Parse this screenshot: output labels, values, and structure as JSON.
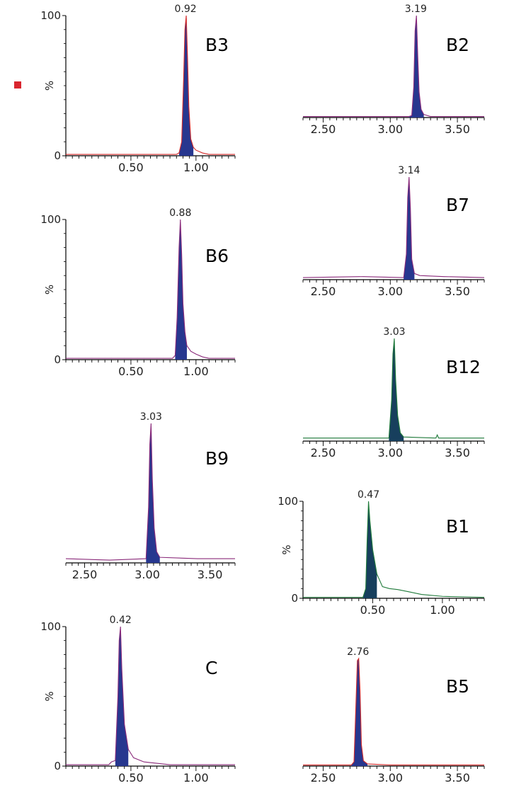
{
  "colors": {
    "peak_fill": "#27378f",
    "peak_fill_green": "#173f5d",
    "trace_red": "#d42a2a",
    "trace_purple": "#8a2a7a",
    "trace_green": "#1f7a3a",
    "axis": "#000000",
    "marker": "#d9262f"
  },
  "chart_data": [
    {
      "type": "line",
      "label": "B3",
      "peak_rt": 0.92,
      "peak_label": "0.92",
      "trace": "red",
      "xlim": [
        0.0,
        1.3
      ],
      "x_ticks": [
        "0.50",
        "1.00"
      ],
      "ylim": [
        0,
        100
      ],
      "y_ticks": [
        "0",
        "100"
      ],
      "ylabel": "%",
      "x": [
        0.0,
        0.85,
        0.87,
        0.89,
        0.905,
        0.915,
        0.925,
        0.935,
        0.945,
        0.96,
        0.98,
        1.0,
        1.05,
        1.1,
        1.3
      ],
      "y": [
        1,
        1,
        2,
        10,
        55,
        90,
        100,
        70,
        35,
        12,
        6,
        4,
        2,
        1,
        1
      ]
    },
    {
      "type": "line",
      "label": "B2",
      "peak_rt": 3.19,
      "peak_label": "3.19",
      "trace": "purple",
      "xlim": [
        2.35,
        3.7
      ],
      "x_ticks": [
        "2.50",
        "3.00",
        "3.50"
      ],
      "ylim": [
        0,
        100
      ],
      "x": [
        2.35,
        3.14,
        3.16,
        3.175,
        3.185,
        3.195,
        3.205,
        3.215,
        3.23,
        3.25,
        3.3,
        3.7
      ],
      "y": [
        1,
        1,
        2,
        30,
        85,
        100,
        60,
        25,
        8,
        3,
        1,
        1
      ]
    },
    {
      "type": "line",
      "label": "B6",
      "peak_rt": 0.88,
      "peak_label": "0.88",
      "trace": "purple",
      "xlim": [
        0.0,
        1.3
      ],
      "x_ticks": [
        "0.50",
        "1.00"
      ],
      "ylim": [
        0,
        100
      ],
      "y_ticks": [
        "0",
        "100"
      ],
      "ylabel": "%",
      "x": [
        0.0,
        0.82,
        0.84,
        0.855,
        0.87,
        0.88,
        0.89,
        0.9,
        0.915,
        0.93,
        0.96,
        1.0,
        1.05,
        1.1,
        1.3
      ],
      "y": [
        1,
        1,
        3,
        30,
        80,
        100,
        75,
        40,
        20,
        10,
        6,
        4,
        2,
        1,
        1
      ]
    },
    {
      "type": "line",
      "label": "B7",
      "peak_rt": 3.14,
      "peak_label": "3.14",
      "trace": "purple",
      "xlim": [
        2.35,
        3.7
      ],
      "x_ticks": [
        "2.50",
        "3.00",
        "3.50"
      ],
      "ylim": [
        0,
        100
      ],
      "x": [
        2.35,
        2.8,
        3.1,
        3.12,
        3.13,
        3.14,
        3.15,
        3.16,
        3.18,
        3.22,
        3.4,
        3.7
      ],
      "y": [
        2,
        3,
        2,
        25,
        80,
        100,
        70,
        20,
        6,
        4,
        3,
        2
      ]
    },
    {
      "type": "line",
      "label": "B9",
      "peak_rt": 3.03,
      "peak_label": "3.03",
      "trace": "purple",
      "xlim": [
        2.35,
        3.7
      ],
      "x_ticks": [
        "2.50",
        "3.00",
        "3.50"
      ],
      "ylim": [
        0,
        100
      ],
      "x": [
        2.35,
        2.7,
        2.99,
        3.01,
        3.02,
        3.03,
        3.04,
        3.055,
        3.075,
        3.1,
        3.4,
        3.7
      ],
      "y": [
        3,
        2,
        3,
        40,
        85,
        100,
        60,
        25,
        8,
        4,
        3,
        3
      ]
    },
    {
      "type": "line",
      "label": "B12",
      "peak_rt": 3.03,
      "peak_label": "3.03",
      "trace": "green",
      "xlim": [
        2.35,
        3.7
      ],
      "x_ticks": [
        "2.50",
        "3.00",
        "3.50"
      ],
      "ylim": [
        0,
        100
      ],
      "x": [
        2.35,
        2.7,
        2.99,
        3.01,
        3.02,
        3.03,
        3.04,
        3.055,
        3.075,
        3.1,
        3.34,
        3.35,
        3.36,
        3.7
      ],
      "y": [
        3,
        3,
        3,
        40,
        85,
        100,
        60,
        25,
        8,
        4,
        3,
        6,
        3,
        3
      ]
    },
    {
      "type": "line",
      "label": "B1",
      "peak_rt": 0.47,
      "peak_label": "0.47",
      "trace": "green",
      "xlim": [
        0.0,
        1.3
      ],
      "x_ticks": [
        "0.50",
        "1.00"
      ],
      "ylim": [
        0,
        100
      ],
      "y_ticks": [
        "0",
        "100"
      ],
      "ylabel": "%",
      "x": [
        0.0,
        0.43,
        0.45,
        0.46,
        0.47,
        0.48,
        0.5,
        0.53,
        0.57,
        0.62,
        0.68,
        0.75,
        0.85,
        1.0,
        1.3
      ],
      "y": [
        1,
        1,
        10,
        60,
        100,
        80,
        50,
        25,
        12,
        10,
        9,
        7,
        4,
        2,
        1
      ]
    },
    {
      "type": "line",
      "label": "C",
      "peak_rt": 0.42,
      "peak_label": "0.42",
      "trace": "purple",
      "xlim": [
        0.0,
        1.3
      ],
      "x_ticks": [
        "0.50",
        "1.00"
      ],
      "ylim": [
        0,
        100
      ],
      "y_ticks": [
        "0",
        "100"
      ],
      "ylabel": "%",
      "x": [
        0.0,
        0.33,
        0.35,
        0.38,
        0.4,
        0.41,
        0.42,
        0.43,
        0.45,
        0.48,
        0.52,
        0.6,
        0.7,
        0.8,
        1.3
      ],
      "y": [
        1,
        1,
        3,
        4,
        50,
        90,
        100,
        70,
        30,
        12,
        6,
        3,
        2,
        1,
        1
      ]
    },
    {
      "type": "line",
      "label": "B5",
      "peak_rt": 2.76,
      "peak_label": "2.76",
      "trace": "red",
      "xlim": [
        2.35,
        3.7
      ],
      "x_ticks": [
        "2.50",
        "3.00",
        "3.50"
      ],
      "ylim": [
        0,
        100
      ],
      "x": [
        2.35,
        2.71,
        2.73,
        2.745,
        2.755,
        2.765,
        2.775,
        2.785,
        2.8,
        2.83,
        3.0,
        3.7
      ],
      "y": [
        1,
        1,
        4,
        60,
        98,
        100,
        70,
        20,
        5,
        2,
        1,
        1
      ]
    }
  ]
}
